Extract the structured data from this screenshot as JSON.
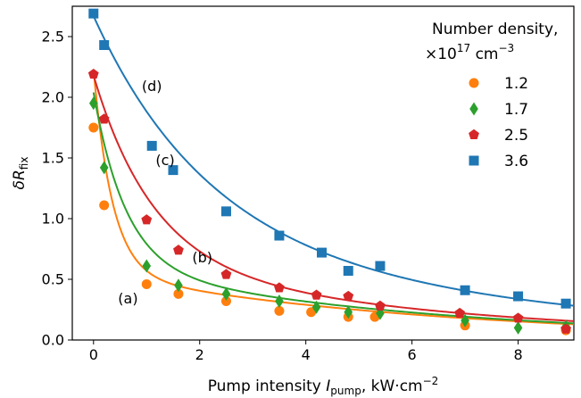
{
  "chart_data": {
    "type": "scatter",
    "xlabel": "Pump intensity I_pump, kW·cm^-2",
    "xlabel_parts": {
      "pre": "Pump intensity ",
      "var": "I",
      "sub": "pump",
      "post": ", kW·cm",
      "sup": "−2"
    },
    "ylabel": "δR_fix",
    "ylabel_parts": {
      "var": "δR",
      "sub": "fix"
    },
    "xlim": [
      -0.4,
      9.05
    ],
    "ylim": [
      0,
      2.75
    ],
    "xticks": [
      0,
      2,
      4,
      6,
      8
    ],
    "yticks": [
      0.0,
      0.5,
      1.0,
      1.5,
      2.0,
      2.5
    ],
    "legend": {
      "title_line1": "Number density,",
      "title_line2_pre": "×10",
      "title_line2_sup": "17",
      "title_line2_unit": " cm",
      "title_line2_unit_sup": "−3",
      "placement": "top-right"
    },
    "series": [
      {
        "name": "1.2",
        "label": "(a)",
        "color": "#ff7f0e",
        "marker": "circle",
        "x": [
          0,
          0.2,
          1.0,
          1.6,
          2.5,
          3.5,
          4.1,
          4.8,
          5.3,
          7.0,
          8.9
        ],
        "y": [
          1.75,
          1.11,
          0.46,
          0.38,
          0.32,
          0.24,
          0.23,
          0.19,
          0.19,
          0.12,
          0.08
        ],
        "fit": {
          "A": 1.68,
          "k": 2.8,
          "B": 0.55,
          "m": 0.16
        }
      },
      {
        "name": "1.7",
        "label": "(b)",
        "color": "#2ca02c",
        "marker": "diamond",
        "x": [
          0,
          0.2,
          1.0,
          1.6,
          2.5,
          3.5,
          4.2,
          4.8,
          5.4,
          7.0,
          8.0,
          8.9
        ],
        "y": [
          1.95,
          1.42,
          0.61,
          0.45,
          0.38,
          0.32,
          0.27,
          0.23,
          0.22,
          0.16,
          0.1,
          0.11
        ],
        "fit": {
          "A": 1.43,
          "k": 1.65,
          "B": 0.61,
          "m": 0.165
        }
      },
      {
        "name": "2.5",
        "label": "(c)",
        "color": "#d62728",
        "marker": "pentagon",
        "x": [
          0,
          0.2,
          1.0,
          1.6,
          2.5,
          3.5,
          4.2,
          4.8,
          5.4,
          6.9,
          8.0,
          8.9
        ],
        "y": [
          2.19,
          1.82,
          0.99,
          0.74,
          0.54,
          0.43,
          0.37,
          0.36,
          0.28,
          0.22,
          0.18,
          0.09
        ],
        "fit": {
          "A": 1.52,
          "k": 0.9,
          "B": 0.66,
          "m": 0.16
        }
      },
      {
        "name": "3.6",
        "label": "(d)",
        "color": "#1f77b4",
        "marker": "square",
        "x": [
          0,
          0.2,
          1.1,
          1.5,
          2.5,
          3.5,
          4.3,
          4.8,
          5.4,
          7.0,
          8.0,
          8.9
        ],
        "y": [
          2.69,
          2.43,
          1.6,
          1.4,
          1.06,
          0.86,
          0.72,
          0.57,
          0.61,
          0.41,
          0.36,
          0.3
        ],
        "fit": {
          "A": 1.75,
          "k": 0.48,
          "B": 0.92,
          "m": 0.14
        }
      }
    ]
  }
}
